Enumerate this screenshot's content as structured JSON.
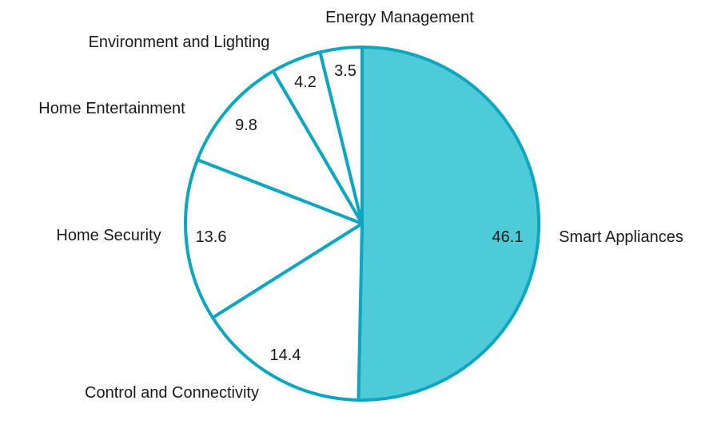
{
  "chart_data": {
    "type": "pie",
    "title": "",
    "legend_position": "none",
    "labels_outside": true,
    "start_angle_deg": 0,
    "direction": "clockwise",
    "categories": [
      "Smart Appliances",
      "Control and Connectivity",
      "Home Security",
      "Home Entertainment",
      "Environment and Lighting",
      "Energy Management"
    ],
    "values": [
      46.1,
      14.4,
      13.6,
      9.8,
      4.2,
      3.5
    ],
    "value_labels": [
      "46.1",
      "14.4",
      "13.6",
      "9.8",
      "4.2",
      "3.5"
    ],
    "highlighted_slice": "Smart Appliances",
    "colors": {
      "highlight_fill": "#4DCBD9",
      "slice_fill": "#FFFFFF",
      "stroke": "#0DA6C0",
      "label_text": "#1A1A1A",
      "background": "#FFFFFF"
    }
  }
}
